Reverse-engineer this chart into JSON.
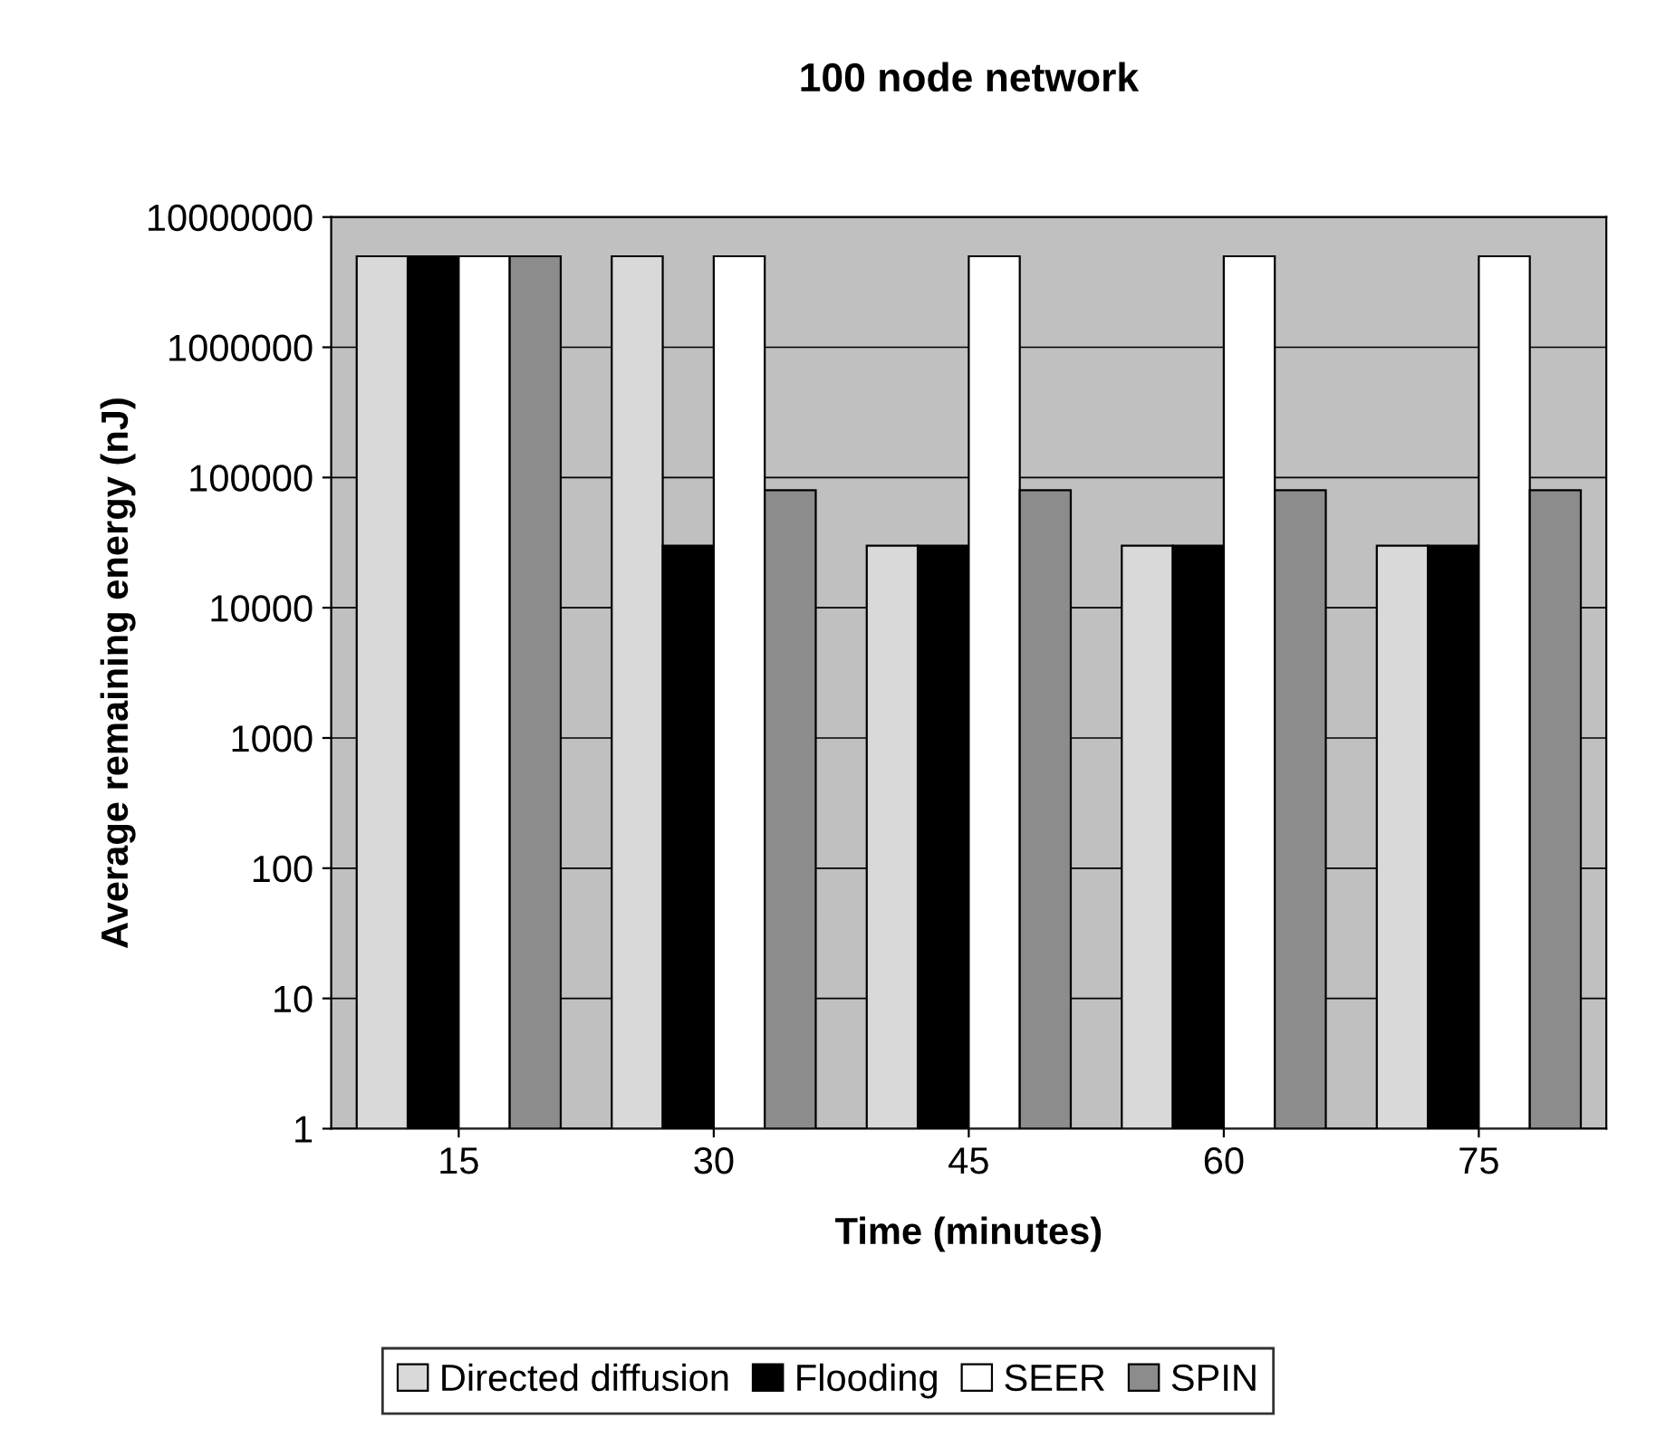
{
  "chart_data": {
    "type": "bar",
    "title": "100 node network",
    "xlabel": "Time (minutes)",
    "ylabel": "Average remaining energy (nJ)",
    "categories": [
      "15",
      "30",
      "45",
      "60",
      "75"
    ],
    "series": [
      {
        "name": "Directed diffusion",
        "color": "#d9d9d9",
        "values": [
          5000000,
          5000000,
          30000,
          30000,
          30000
        ]
      },
      {
        "name": "Flooding",
        "color": "#000000",
        "values": [
          5000000,
          30000,
          30000,
          30000,
          30000
        ]
      },
      {
        "name": "SEER",
        "color": "#ffffff",
        "values": [
          5000000,
          5000000,
          5000000,
          5000000,
          5000000
        ]
      },
      {
        "name": "SPIN",
        "color": "#8c8c8c",
        "values": [
          5000000,
          80000,
          80000,
          80000,
          80000
        ]
      }
    ],
    "log": true,
    "ylim": [
      1,
      10000000
    ],
    "yticks": [
      1,
      10,
      100,
      1000,
      10000,
      100000,
      1000000,
      10000000
    ],
    "grid": "y",
    "legend": "bottom"
  }
}
